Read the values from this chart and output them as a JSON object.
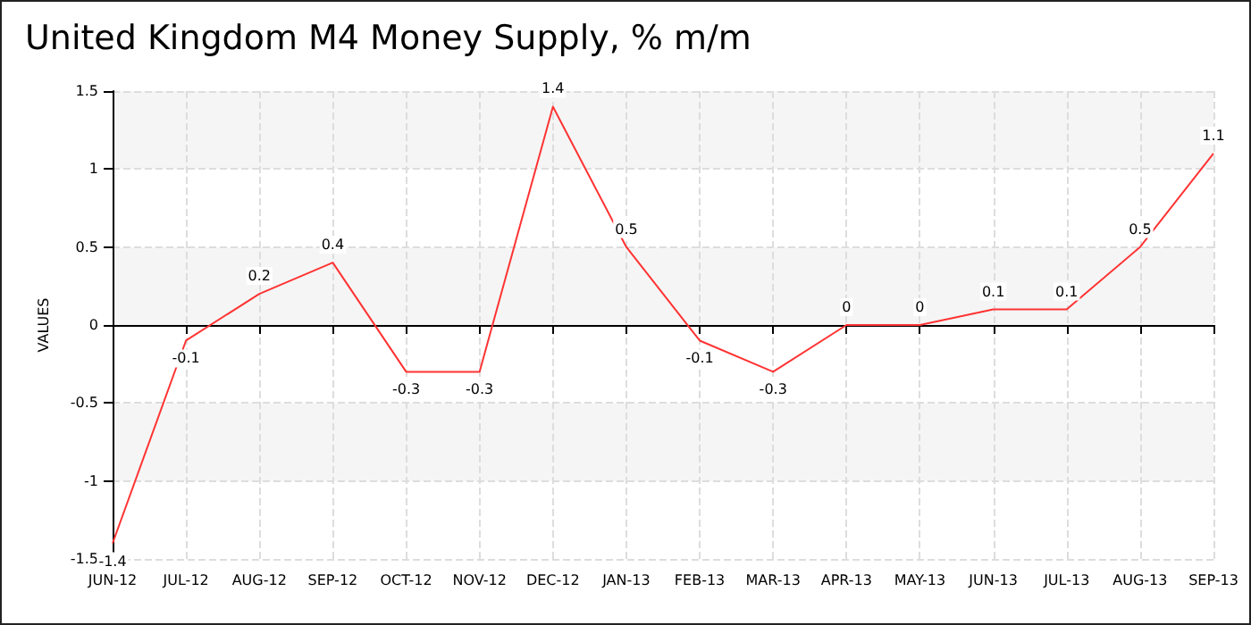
{
  "chart_data": {
    "type": "line",
    "title": "United Kingdom M4 Money Supply, % m/m",
    "ylabel": "VALUES",
    "categories": [
      "JUN-12",
      "JUL-12",
      "AUG-12",
      "SEP-12",
      "OCT-12",
      "NOV-12",
      "DEC-12",
      "JAN-13",
      "FEB-13",
      "MAR-13",
      "APR-13",
      "MAY-13",
      "JUN-13",
      "JUL-13",
      "AUG-13",
      "SEP-13"
    ],
    "series": [
      {
        "color": "#ff3333",
        "values": [
          -1.4,
          -0.1,
          0.2,
          0.4,
          -0.3,
          -0.3,
          1.4,
          0.5,
          -0.1,
          -0.3,
          0,
          0,
          0.1,
          0.1,
          0.5,
          1.1
        ]
      }
    ],
    "ylim": [
      -1.5,
      1.5
    ],
    "yticks": [
      -1.5,
      -1,
      -0.5,
      0,
      0.5,
      1,
      1.5
    ],
    "grid": true,
    "data_labels": true,
    "marker": "none",
    "line_style": "solid"
  }
}
